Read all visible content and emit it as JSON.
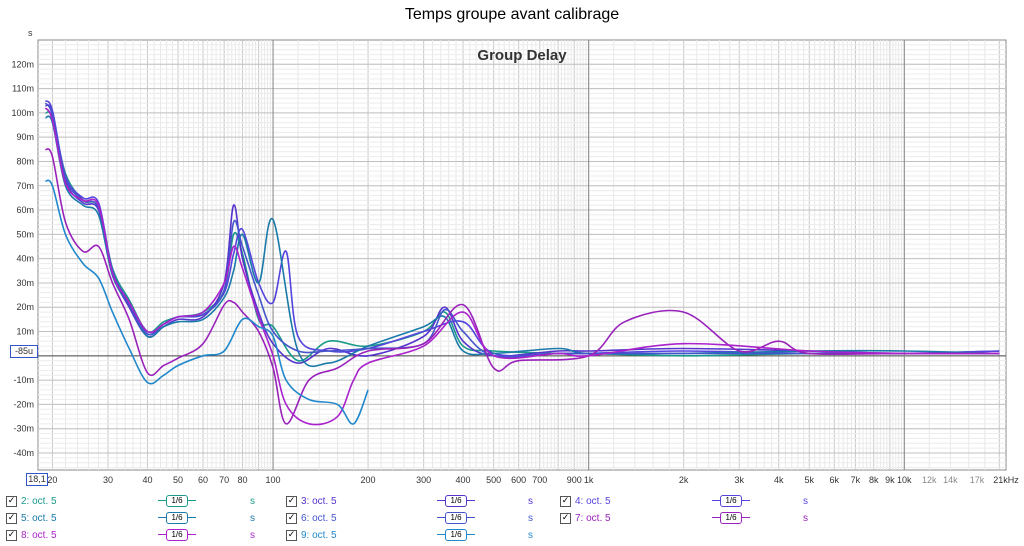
{
  "page_title": "Temps groupe avant calibrage",
  "chart_data": {
    "type": "line",
    "title": "Group Delay",
    "y_unit": "s",
    "x_scale": "log",
    "xlim": [
      18,
      21000
    ],
    "ylim": [
      -0.047,
      0.13
    ],
    "grid": true,
    "reference_label": "-85u",
    "x_start_label": "18,1",
    "x_ticks": [
      {
        "v": 20,
        "label": "20"
      },
      {
        "v": 30,
        "label": "30"
      },
      {
        "v": 40,
        "label": "40"
      },
      {
        "v": 50,
        "label": "50"
      },
      {
        "v": 60,
        "label": "60"
      },
      {
        "v": 70,
        "label": "70"
      },
      {
        "v": 80,
        "label": "80"
      },
      {
        "v": 100,
        "label": "100"
      },
      {
        "v": 200,
        "label": "200"
      },
      {
        "v": 300,
        "label": "300"
      },
      {
        "v": 400,
        "label": "400"
      },
      {
        "v": 500,
        "label": "500"
      },
      {
        "v": 600,
        "label": "600"
      },
      {
        "v": 700,
        "label": "700"
      },
      {
        "v": 900,
        "label": "900"
      },
      {
        "v": 1000,
        "label": "1k"
      },
      {
        "v": 2000,
        "label": "2k"
      },
      {
        "v": 3000,
        "label": "3k"
      },
      {
        "v": 4000,
        "label": "4k"
      },
      {
        "v": 5000,
        "label": "5k"
      },
      {
        "v": 6000,
        "label": "6k"
      },
      {
        "v": 7000,
        "label": "7k"
      },
      {
        "v": 8000,
        "label": "8k"
      },
      {
        "v": 9000,
        "label": "9k"
      },
      {
        "v": 10000,
        "label": "10k"
      },
      {
        "v": 12000,
        "label": "12k"
      },
      {
        "v": 14000,
        "label": "14k"
      },
      {
        "v": 17000,
        "label": "17k"
      },
      {
        "v": 21000,
        "label": "21kHz"
      }
    ],
    "y_ticks": [
      {
        "v": 0.12,
        "label": "120m"
      },
      {
        "v": 0.11,
        "label": "110m"
      },
      {
        "v": 0.1,
        "label": "100m"
      },
      {
        "v": 0.09,
        "label": "90m"
      },
      {
        "v": 0.08,
        "label": "80m"
      },
      {
        "v": 0.07,
        "label": "70m"
      },
      {
        "v": 0.06,
        "label": "60m"
      },
      {
        "v": 0.05,
        "label": "50m"
      },
      {
        "v": 0.04,
        "label": "40m"
      },
      {
        "v": 0.03,
        "label": "30m"
      },
      {
        "v": 0.02,
        "label": "20m"
      },
      {
        "v": 0.01,
        "label": "10m"
      },
      {
        "v": -0.01,
        "label": "-10m"
      },
      {
        "v": -0.02,
        "label": "-20m"
      },
      {
        "v": -0.03,
        "label": "-30m"
      },
      {
        "v": -0.04,
        "label": "-40m"
      }
    ],
    "series": [
      {
        "name": "2: oct. 5",
        "color": "#1a9a8a",
        "x": [
          19,
          20,
          22,
          25,
          28,
          31,
          35,
          40,
          45,
          50,
          60,
          70,
          75,
          80,
          90,
          100,
          120,
          150,
          200,
          300,
          350,
          400,
          500,
          800,
          1000,
          2000,
          5000,
          10000,
          20000
        ],
        "y": [
          0.1,
          0.098,
          0.075,
          0.064,
          0.061,
          0.036,
          0.023,
          0.01,
          0.014,
          0.016,
          0.018,
          0.027,
          0.05,
          0.042,
          0.015,
          0.012,
          -0.002,
          0.006,
          0.004,
          0.01,
          0.018,
          0.004,
          0.002,
          0.001,
          0.001,
          0.0,
          0.001,
          0.001,
          0.001
        ]
      },
      {
        "name": "3: oct. 5",
        "color": "#5533cc",
        "x": [
          19,
          20,
          22,
          25,
          28,
          31,
          35,
          40,
          45,
          50,
          60,
          70,
          75,
          80,
          90,
          100,
          120,
          150,
          200,
          300,
          350,
          400,
          500,
          800,
          1000,
          2000,
          5000,
          10000,
          20000
        ],
        "y": [
          0.103,
          0.1,
          0.072,
          0.063,
          0.06,
          0.034,
          0.02,
          0.008,
          0.012,
          0.015,
          0.016,
          0.03,
          0.062,
          0.04,
          0.018,
          0.005,
          -0.003,
          0.003,
          0.0,
          0.008,
          0.02,
          0.006,
          0.0,
          0.002,
          0.002,
          0.003,
          0.002,
          0.001,
          0.002
        ]
      },
      {
        "name": "4: oct. 5",
        "color": "#5544dd",
        "x": [
          19,
          20,
          22,
          25,
          28,
          31,
          35,
          40,
          45,
          50,
          60,
          70,
          75,
          80,
          90,
          100,
          110,
          120,
          150,
          200,
          300,
          400,
          500,
          800,
          1000,
          2000,
          5000,
          10000,
          20000
        ],
        "y": [
          0.105,
          0.101,
          0.074,
          0.065,
          0.063,
          0.035,
          0.022,
          0.009,
          0.013,
          0.016,
          0.017,
          0.026,
          0.042,
          0.052,
          0.03,
          0.022,
          0.043,
          0.008,
          0.002,
          0.003,
          0.01,
          0.014,
          0.001,
          0.001,
          0.001,
          0.002,
          0.001,
          0.001,
          0.002
        ]
      },
      {
        "name": "5: oct. 5",
        "color": "#1a7aaa",
        "x": [
          19,
          20,
          22,
          25,
          28,
          31,
          35,
          40,
          45,
          50,
          60,
          70,
          75,
          80,
          90,
          100,
          120,
          150,
          200,
          300,
          350,
          400,
          500,
          800,
          1000,
          2000,
          5000,
          10000,
          20000
        ],
        "y": [
          0.098,
          0.096,
          0.07,
          0.062,
          0.058,
          0.033,
          0.021,
          0.008,
          0.012,
          0.014,
          0.015,
          0.024,
          0.035,
          0.05,
          0.03,
          0.056,
          0.002,
          -0.003,
          0.004,
          0.012,
          0.016,
          0.002,
          0.001,
          0.003,
          0.001,
          0.001,
          0.002,
          0.002,
          0.001
        ]
      },
      {
        "name": "6: oct. 5",
        "color": "#4455cc",
        "x": [
          19,
          20,
          22,
          25,
          28,
          31,
          35,
          40,
          45,
          50,
          60,
          70,
          75,
          80,
          90,
          100,
          120,
          150,
          200,
          300,
          350,
          400,
          500,
          800,
          1000,
          2000,
          5000,
          10000,
          20000
        ],
        "y": [
          0.104,
          0.099,
          0.073,
          0.064,
          0.061,
          0.035,
          0.021,
          0.009,
          0.013,
          0.016,
          0.017,
          0.027,
          0.055,
          0.045,
          0.025,
          0.01,
          0.002,
          0.002,
          0.003,
          0.005,
          0.019,
          0.01,
          0.0,
          0.001,
          0.001,
          0.001,
          0.001,
          0.001,
          0.001
        ]
      },
      {
        "name": "7: oct. 5",
        "color": "#9922bb",
        "x": [
          19,
          20,
          22,
          25,
          28,
          31,
          35,
          40,
          45,
          50,
          60,
          70,
          75,
          80,
          90,
          100,
          110,
          130,
          160,
          200,
          300,
          400,
          500,
          600,
          1000,
          1300,
          2000,
          3000,
          4000,
          5000,
          10000,
          20000
        ],
        "y": [
          0.085,
          0.082,
          0.055,
          0.043,
          0.045,
          0.03,
          0.015,
          -0.007,
          -0.004,
          -0.001,
          0.005,
          0.021,
          0.022,
          0.018,
          0.01,
          -0.005,
          -0.028,
          -0.01,
          -0.005,
          0.002,
          0.005,
          0.021,
          -0.005,
          -0.002,
          0.0,
          0.014,
          0.018,
          0.002,
          0.006,
          0.001,
          0.001,
          0.001
        ]
      },
      {
        "name": "8: oct. 5",
        "color": "#aa22cc",
        "x": [
          19,
          20,
          22,
          25,
          28,
          31,
          35,
          40,
          45,
          50,
          60,
          70,
          75,
          80,
          90,
          100,
          110,
          130,
          160,
          180,
          200,
          300,
          400,
          500,
          800,
          1000,
          2000,
          5000,
          10000,
          20000
        ],
        "y": [
          0.102,
          0.097,
          0.071,
          0.064,
          0.062,
          0.034,
          0.022,
          0.01,
          0.013,
          0.016,
          0.018,
          0.03,
          0.045,
          0.036,
          0.016,
          0.0,
          -0.02,
          -0.028,
          -0.025,
          -0.01,
          -0.003,
          0.004,
          0.018,
          0.0,
          0.001,
          0.0,
          0.005,
          0.002,
          0.001,
          0.001
        ]
      },
      {
        "name": "9: oct. 5",
        "color": "#2288cc",
        "x": [
          19,
          20,
          22,
          25,
          28,
          31,
          35,
          40,
          45,
          50,
          60,
          70,
          80,
          90,
          100,
          110,
          130,
          160,
          180,
          200
        ],
        "y": [
          0.072,
          0.07,
          0.05,
          0.038,
          0.032,
          0.018,
          0.003,
          -0.011,
          -0.008,
          -0.004,
          0.0,
          0.002,
          0.015,
          0.012,
          0.008,
          -0.01,
          -0.018,
          -0.02,
          -0.028,
          -0.014
        ]
      }
    ]
  },
  "legend": {
    "smoothing_label": "1/6",
    "unit": "s",
    "items": [
      {
        "label": "2: oct. 5",
        "color": "#1a9a8a"
      },
      {
        "label": "3: oct. 5",
        "color": "#5533cc"
      },
      {
        "label": "4: oct. 5",
        "color": "#5544dd"
      },
      {
        "label": "5: oct. 5",
        "color": "#1a7aaa"
      },
      {
        "label": "6: oct. 5",
        "color": "#4455cc"
      },
      {
        "label": "7: oct. 5",
        "color": "#9922bb"
      },
      {
        "label": "8: oct. 5",
        "color": "#aa22cc"
      },
      {
        "label": "9: oct. 5",
        "color": "#2288cc"
      }
    ]
  }
}
